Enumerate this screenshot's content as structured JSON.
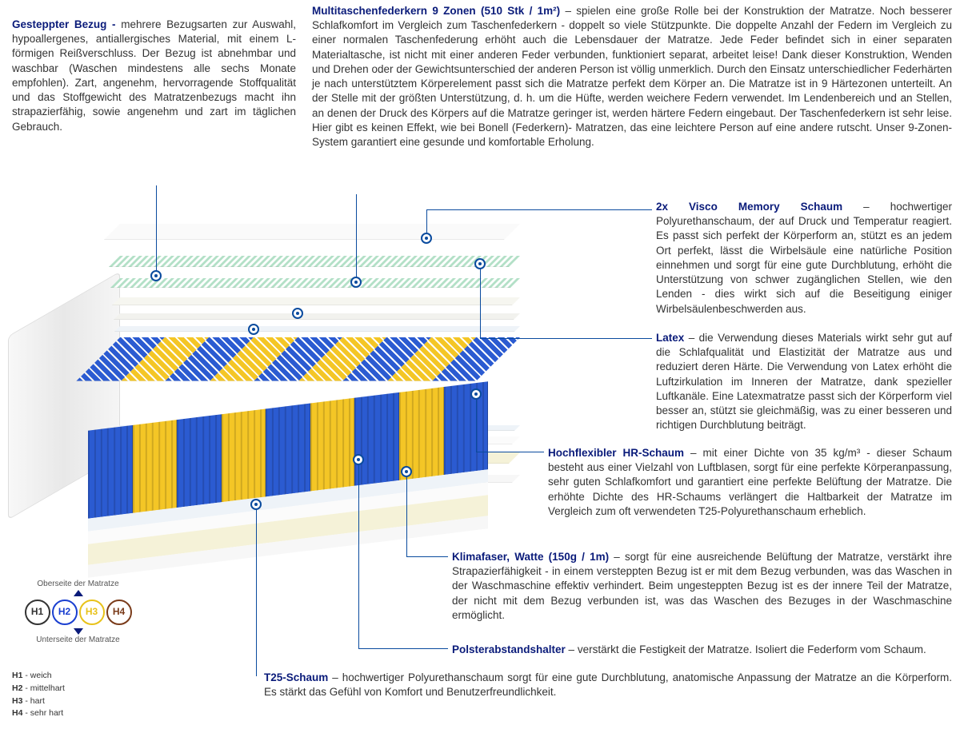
{
  "colors": {
    "heading": "#0a1b7a",
    "callout_line": "#0a4b9e",
    "text": "#333333",
    "zone_blue": "#2b5bd1",
    "zone_yellow": "#f4c626",
    "h1_border": "#333333",
    "h2_border": "#1a3fd0",
    "h3_border": "#e8c21a",
    "h4_border": "#7a3b1a"
  },
  "sections": {
    "cover": {
      "title": "Gesteppter Bezug -",
      "body": "mehrere Bezugsarten zur Auswahl, hypoallergenes, antiallergisches Material, mit einem L-förmigen Reißverschluss. Der Bezug ist abnehmbar und waschbar (Waschen mindestens alle sechs Monate empfohlen). Zart, angenehm, hervorragende Stoffqualität und das Stoffgewicht des Matratzenbezugs macht ihn strapazierfähig, sowie angenehm und zart im täglichen Gebrauch."
    },
    "springs": {
      "title": "Multitaschenfederkern 9 Zonen (510 Stk / 1m²)",
      "body": "spielen eine große Rolle bei der Konstruktion der Matratze. Noch besserer Schlafkomfort im Vergleich zum Taschenfederkern - doppelt so viele Stützpunkte. Die doppelte Anzahl der Federn im Vergleich zu einer normalen Taschenfederung erhöht auch die Lebensdauer der Matratze. Jede Feder befindet sich in einer separaten Materialtasche, ist nicht mit einer anderen Feder verbunden, funktioniert separat, arbeitet leise! Dank dieser Konstruktion, Wenden und Drehen oder der Gewichtsunterschied der anderen Person ist völlig unmerklich. Durch den Einsatz unterschiedlicher Federhärten je nach unterstütztem Körperelement passt sich die Matratze perfekt dem Körper an. Die Matratze ist in 9 Härtezonen unterteilt. An der Stelle mit der größten Unterstützung, d. h. um die Hüfte, werden weichere Federn verwendet. Im Lendenbereich und an Stellen, an denen der Druck des Körpers auf die Matratze geringer ist, werden härtere Federn eingebaut. Der Taschenfederkern ist sehr leise. Hier gibt es keinen Effekt, wie bei Bonell (Federkern)- Matratzen, das eine leichtere Person auf eine andere rutscht. Unser 9-Zonen-System garantiert eine gesunde und komfortable Erholung."
    },
    "visco": {
      "title": "2x Visco Memory Schaum",
      "body": "hochwertiger Polyurethanschaum, der auf Druck und Temperatur reagiert. Es passt sich perfekt der Körperform an, stützt es an jedem Ort perfekt, lässt die Wirbelsäule eine natürliche Position einnehmen und sorgt für eine gute Durchblutung, erhöht die Unterstützung von schwer zugänglichen Stellen, wie den Lenden - dies wirkt sich auf die Beseitigung einiger Wirbelsäulenbeschwerden aus."
    },
    "latex": {
      "title": "Latex",
      "body": "die Verwendung dieses Materials wirkt sehr gut auf die Schlafqualität und Elastizität der Matratze aus und reduziert deren Härte. Die Verwendung von Latex erhöht die Luftzirkulation im Inneren der Matratze, dank spezieller Luftkanäle. Eine Latexmatratze passt sich der Körperform viel besser an, stützt sie gleichmäßig, was zu einer besseren und richtigen Durchblutung beiträgt."
    },
    "hr": {
      "title": "Hochflexibler HR-Schaum",
      "body": "mit einer Dichte von 35 kg/m³ - dieser Schaum besteht aus einer Vielzahl von Luftblasen, sorgt für eine perfekte Körperanpassung, sehr guten Schlafkomfort und garantiert eine perfekte Belüftung der Matratze. Die erhöhte Dichte des HR-Schaums verlängert die Haltbarkeit der Matratze im Vergleich zum oft verwendeten T25-Polyurethanschaum erheblich."
    },
    "klima": {
      "title": "Klimafaser, Watte (150g / 1m)",
      "body": "sorgt für eine ausreichende Belüftung der Matratze, verstärkt ihre Strapazierfähigkeit - in einem versteppten Bezug ist er mit dem Bezug verbunden, was das Waschen in der Waschmaschine effektiv verhindert. Beim ungesteppten Bezug ist es der innere Teil der Matratze, der nicht mit dem Bezug verbunden ist, was das Waschen des Bezuges in der Waschmaschine ermöglicht."
    },
    "polster": {
      "title": "Polsterabstandshalter",
      "body": "verstärkt die Festigkeit der Matratze. Isoliert die Federform vom Schaum."
    },
    "t25": {
      "title": "T25-Schaum",
      "body": "hochwertiger Polyurethanschaum sorgt für eine gute Durchblutung, anatomische Anpassung der Matratze an die Körperform. Es stärkt das Gefühl von Komfort und Benutzerfreundlichkeit."
    }
  },
  "legend": {
    "top_label": "Oberseite der Matratze",
    "bottom_label": "Unterseite der Matratze",
    "badges": [
      {
        "id": "H1",
        "color": "#333333"
      },
      {
        "id": "H2",
        "color": "#1a3fd0"
      },
      {
        "id": "H3",
        "color": "#e8c21a"
      },
      {
        "id": "H4",
        "color": "#7a3b1a"
      }
    ],
    "definitions": [
      {
        "code": "H1",
        "desc": "weich"
      },
      {
        "code": "H2",
        "desc": "mittelhart"
      },
      {
        "code": "H3",
        "desc": "hart"
      },
      {
        "code": "H4",
        "desc": "sehr hart"
      }
    ]
  },
  "spring_zones": [
    "#2b5bd1",
    "#f4c626",
    "#2b5bd1",
    "#f4c626",
    "#2b5bd1",
    "#f4c626",
    "#2b5bd1",
    "#f4c626",
    "#2b5bd1"
  ]
}
